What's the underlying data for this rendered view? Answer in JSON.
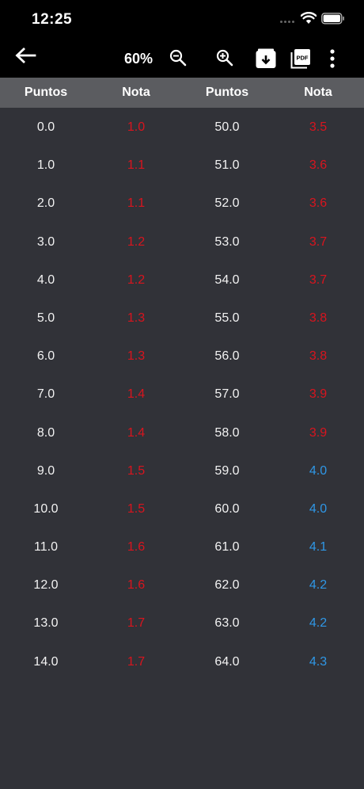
{
  "status_bar": {
    "time": "12:25"
  },
  "toolbar": {
    "zoom": "60%"
  },
  "table": {
    "headers": [
      "Puntos",
      "Nota",
      "Puntos",
      "Nota"
    ],
    "rows": [
      [
        "0.0",
        "1.0",
        "50.0",
        "3.5"
      ],
      [
        "1.0",
        "1.1",
        "51.0",
        "3.6"
      ],
      [
        "2.0",
        "1.1",
        "52.0",
        "3.6"
      ],
      [
        "3.0",
        "1.2",
        "53.0",
        "3.7"
      ],
      [
        "4.0",
        "1.2",
        "54.0",
        "3.7"
      ],
      [
        "5.0",
        "1.3",
        "55.0",
        "3.8"
      ],
      [
        "6.0",
        "1.3",
        "56.0",
        "3.8"
      ],
      [
        "7.0",
        "1.4",
        "57.0",
        "3.9"
      ],
      [
        "8.0",
        "1.4",
        "58.0",
        "3.9"
      ],
      [
        "9.0",
        "1.5",
        "59.0",
        "4.0"
      ],
      [
        "10.0",
        "1.5",
        "60.0",
        "4.0"
      ],
      [
        "11.0",
        "1.6",
        "61.0",
        "4.1"
      ],
      [
        "12.0",
        "1.6",
        "62.0",
        "4.2"
      ],
      [
        "13.0",
        "1.7",
        "63.0",
        "4.2"
      ],
      [
        "14.0",
        "1.7",
        "64.0",
        "4.3"
      ]
    ]
  },
  "colors": {
    "fail_grade": "#d9141e",
    "pass_grade": "#2f97e6",
    "background": "#313238",
    "header": "#5b5c60"
  },
  "icons": [
    "back-arrow-icon",
    "zoom-out-icon",
    "zoom-in-icon",
    "download-icon",
    "pdf-icon",
    "more-vertical-icon",
    "wifi-icon",
    "battery-icon"
  ]
}
